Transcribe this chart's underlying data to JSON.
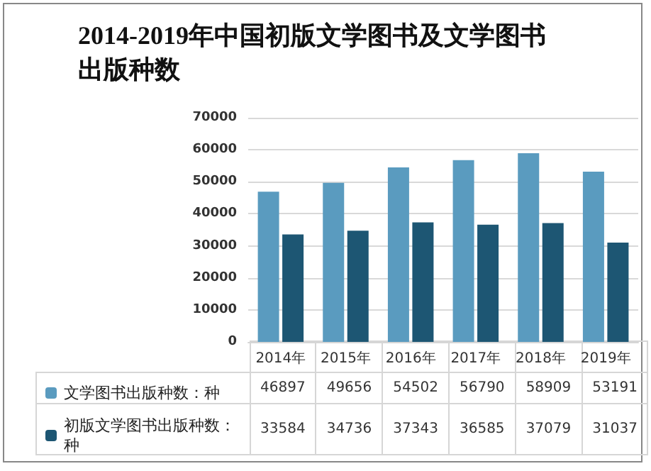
{
  "chart_data": {
    "type": "bar",
    "title": "2014-2019年中国初版文学图书及文学图书出版种数",
    "categories": [
      "2014年",
      "2015年",
      "2016年",
      "2017年",
      "2018年",
      "2019年"
    ],
    "series": [
      {
        "name": "文学图书出版种数：种",
        "color": "#5a9bbf",
        "values": [
          46897,
          49656,
          54502,
          56790,
          58909,
          53191
        ]
      },
      {
        "name": "初版文学图书出版种数：种",
        "color": "#1d5673",
        "values": [
          33584,
          34736,
          37343,
          36585,
          37079,
          31037
        ]
      }
    ],
    "ylim": [
      0,
      70000
    ],
    "yticks": [
      0,
      10000,
      20000,
      30000,
      40000,
      50000,
      60000,
      70000
    ],
    "grid": "y",
    "legend": "bottom left",
    "data_labels": true
  }
}
